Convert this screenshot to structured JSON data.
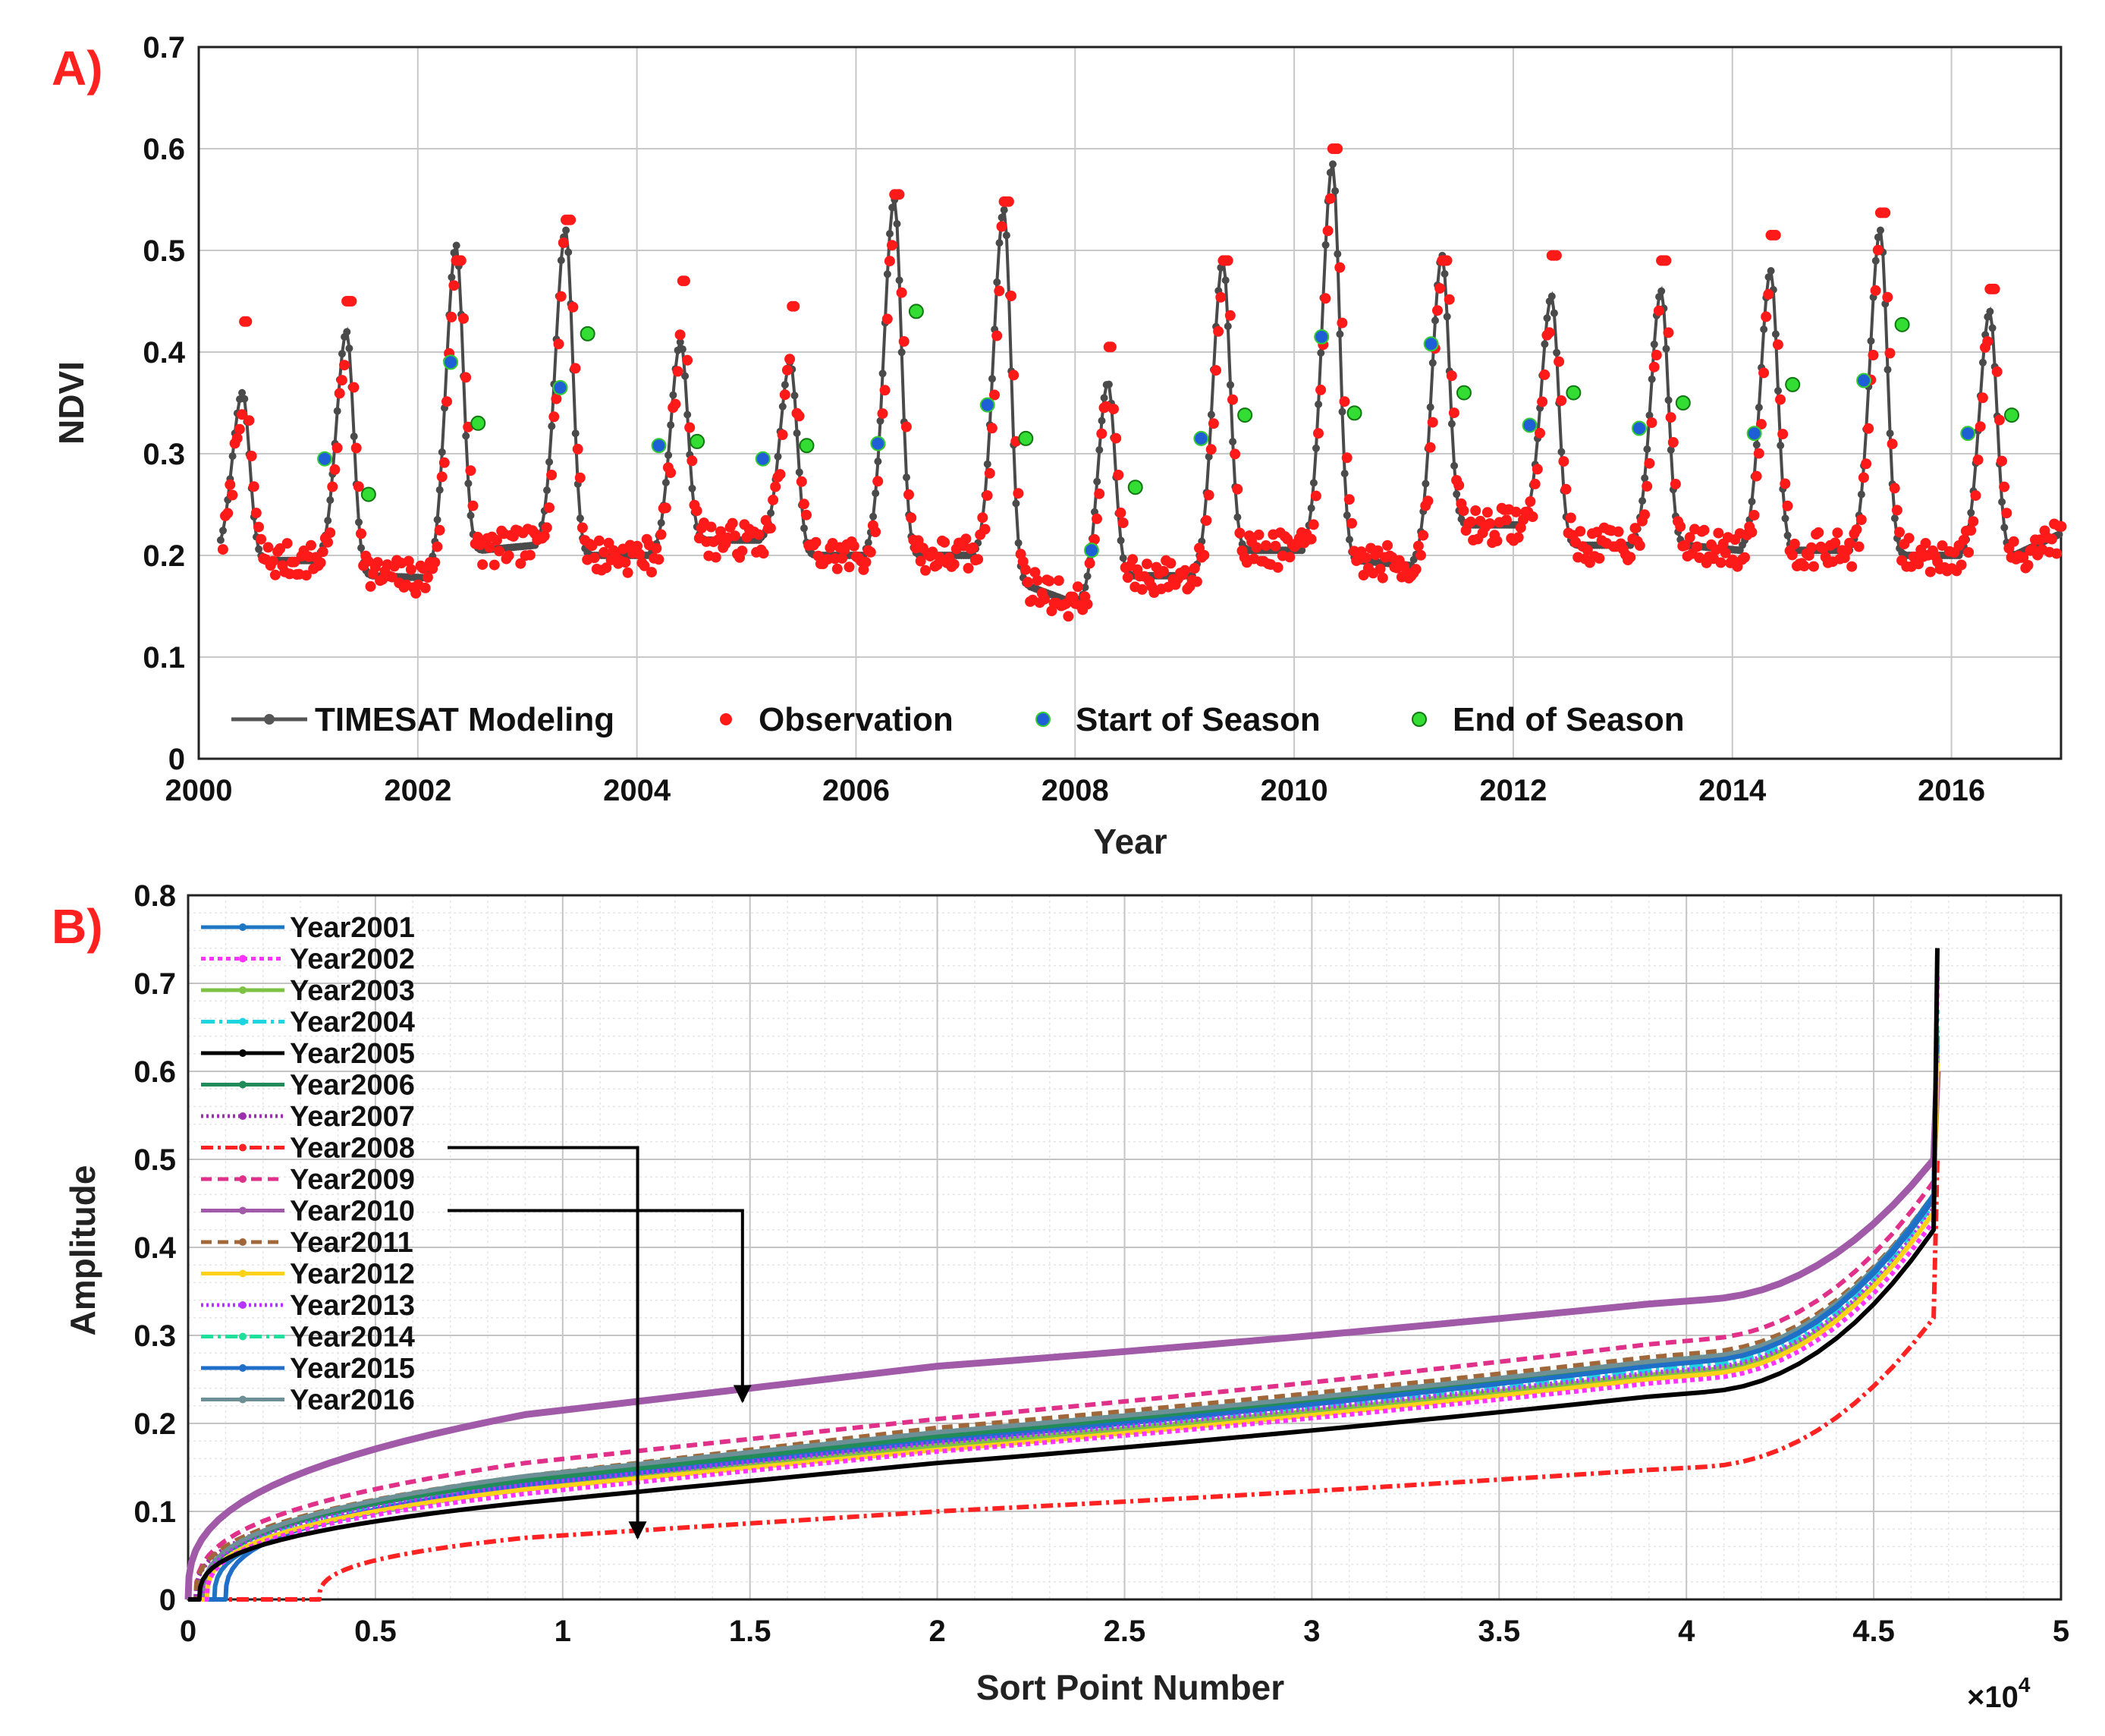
{
  "chart_data": [
    {
      "panel": "A)",
      "type": "line",
      "xlabel": "Year",
      "ylabel": "NDVI",
      "xlim": [
        2000,
        2017
      ],
      "ylim": [
        0,
        0.7
      ],
      "x_ticks": [
        "2000",
        "2002",
        "2004",
        "2006",
        "2008",
        "2010",
        "2012",
        "2014",
        "2016"
      ],
      "y_ticks": [
        "0",
        "0.1",
        "0.2",
        "0.3",
        "0.4",
        "0.5",
        "0.6",
        "0.7"
      ],
      "grid": true,
      "legend_position": "bottom-left",
      "series": [
        {
          "name": "TIMESAT Modeling",
          "style": "line-dot",
          "color": "#555555"
        },
        {
          "name": "Observation",
          "style": "marker",
          "color": "#ff1a1a"
        },
        {
          "name": "Start of Season",
          "style": "marker",
          "color": "#1f5fd6"
        },
        {
          "name": "End of Season",
          "style": "marker",
          "color": "#33dd33"
        }
      ],
      "seasons": [
        {
          "peak_x": 2000.4,
          "peak": 0.36,
          "base_before": 0.2,
          "base_after": 0.195,
          "obs_peak": 0.43
        },
        {
          "peak_x": 2001.35,
          "peak": 0.42,
          "base_before": 0.195,
          "base_after": 0.18,
          "obs_peak": 0.45
        },
        {
          "peak_x": 2002.35,
          "peak": 0.505,
          "base_before": 0.178,
          "base_after": 0.205,
          "obs_peak": 0.49
        },
        {
          "peak_x": 2003.35,
          "peak": 0.52,
          "base_before": 0.21,
          "base_after": 0.2,
          "obs_peak": 0.53
        },
        {
          "peak_x": 2004.4,
          "peak": 0.41,
          "base_before": 0.2,
          "base_after": 0.215,
          "obs_peak": 0.47
        },
        {
          "peak_x": 2005.4,
          "peak": 0.39,
          "base_before": 0.215,
          "base_after": 0.2,
          "obs_peak": 0.445
        },
        {
          "peak_x": 2006.35,
          "peak": 0.55,
          "base_before": 0.2,
          "base_after": 0.2,
          "obs_peak": 0.555
        },
        {
          "peak_x": 2007.35,
          "peak": 0.54,
          "base_before": 0.2,
          "base_after": 0.17,
          "obs_peak": 0.548
        },
        {
          "peak_x": 2008.3,
          "peak": 0.37,
          "base_before": 0.152,
          "base_after": 0.18,
          "obs_peak": 0.405
        },
        {
          "peak_x": 2009.35,
          "peak": 0.49,
          "base_before": 0.18,
          "base_after": 0.205,
          "obs_peak": 0.49
        },
        {
          "peak_x": 2010.35,
          "peak": 0.585,
          "base_before": 0.205,
          "base_after": 0.195,
          "obs_peak": 0.6
        },
        {
          "peak_x": 2011.35,
          "peak": 0.495,
          "base_before": 0.19,
          "base_after": 0.23,
          "obs_peak": 0.49
        },
        {
          "peak_x": 2012.35,
          "peak": 0.455,
          "base_before": 0.23,
          "base_after": 0.21,
          "obs_peak": 0.495
        },
        {
          "peak_x": 2013.35,
          "peak": 0.46,
          "base_before": 0.21,
          "base_after": 0.21,
          "obs_peak": 0.49
        },
        {
          "peak_x": 2014.35,
          "peak": 0.48,
          "base_before": 0.205,
          "base_after": 0.205,
          "obs_peak": 0.515
        },
        {
          "peak_x": 2015.35,
          "peak": 0.52,
          "base_before": 0.205,
          "base_after": 0.2,
          "obs_peak": 0.537
        },
        {
          "peak_x": 2016.35,
          "peak": 0.44,
          "base_before": 0.2,
          "base_after": 0.2,
          "obs_peak": 0.462
        }
      ],
      "start_of_season": [
        [
          2001.15,
          0.295
        ],
        [
          2002.3,
          0.39
        ],
        [
          2003.3,
          0.365
        ],
        [
          2004.2,
          0.308
        ],
        [
          2005.15,
          0.295
        ],
        [
          2006.2,
          0.31
        ],
        [
          2007.2,
          0.348
        ],
        [
          2008.15,
          0.205
        ],
        [
          2009.15,
          0.315
        ],
        [
          2010.25,
          0.415
        ],
        [
          2011.25,
          0.408
        ],
        [
          2012.15,
          0.328
        ],
        [
          2013.15,
          0.325
        ],
        [
          2014.2,
          0.32
        ],
        [
          2015.2,
          0.372
        ],
        [
          2016.15,
          0.32
        ]
      ],
      "end_of_season": [
        [
          2001.55,
          0.26
        ],
        [
          2002.55,
          0.33
        ],
        [
          2003.55,
          0.418
        ],
        [
          2004.55,
          0.312
        ],
        [
          2005.55,
          0.308
        ],
        [
          2006.55,
          0.44
        ],
        [
          2007.55,
          0.315
        ],
        [
          2008.55,
          0.267
        ],
        [
          2009.55,
          0.338
        ],
        [
          2010.55,
          0.34
        ],
        [
          2011.55,
          0.36
        ],
        [
          2012.55,
          0.36
        ],
        [
          2013.55,
          0.35
        ],
        [
          2014.55,
          0.368
        ],
        [
          2015.55,
          0.427
        ],
        [
          2016.55,
          0.338
        ]
      ]
    },
    {
      "panel": "B)",
      "type": "line",
      "xlabel": "Sort Point Number",
      "ylabel": "Amplitude",
      "x_multiplier": "×10",
      "x_multiplier_exp": "4",
      "xlim": [
        0,
        5
      ],
      "ylim": [
        0,
        0.8
      ],
      "x_ticks": [
        "0",
        "0.5",
        "1",
        "1.5",
        "2",
        "2.5",
        "3",
        "3.5",
        "4",
        "4.5",
        "5"
      ],
      "y_ticks": [
        "0",
        "0.1",
        "0.2",
        "0.3",
        "0.4",
        "0.5",
        "0.6",
        "0.7",
        "0.8"
      ],
      "grid": true,
      "legend_position": "top-left",
      "x_end": 4.67,
      "series": [
        {
          "name": "Year2001",
          "color": "#1f77c4",
          "dash": "",
          "start": 0.07,
          "y1": 0.125,
          "y2": 0.18,
          "y3": 0.27,
          "y4": 0.46,
          "ymax": 0.62
        },
        {
          "name": "Year2002",
          "color": "#ff33ff",
          "dash": "6 5",
          "start": 0.05,
          "y1": 0.12,
          "y2": 0.168,
          "y3": 0.25,
          "y4": 0.43,
          "ymax": 0.71
        },
        {
          "name": "Year2003",
          "color": "#7dc242",
          "dash": "",
          "start": 0.05,
          "y1": 0.125,
          "y2": 0.175,
          "y3": 0.26,
          "y4": 0.44,
          "ymax": 0.62
        },
        {
          "name": "Year2004",
          "color": "#1ed6e0",
          "dash": "18 6 4 6",
          "start": 0.04,
          "y1": 0.13,
          "y2": 0.18,
          "y3": 0.265,
          "y4": 0.45,
          "ymax": 0.63
        },
        {
          "name": "Year2005",
          "color": "#000000",
          "dash": "",
          "start": 0.03,
          "y1": 0.11,
          "y2": 0.155,
          "y3": 0.235,
          "y4": 0.42,
          "ymax": 0.74
        },
        {
          "name": "Year2006",
          "color": "#228b5a",
          "dash": "",
          "start": 0.04,
          "y1": 0.135,
          "y2": 0.185,
          "y3": 0.27,
          "y4": 0.455,
          "ymax": 0.64
        },
        {
          "name": "Year2007",
          "color": "#9b2fae",
          "dash": "3 4",
          "start": 0.02,
          "y1": 0.135,
          "y2": 0.19,
          "y3": 0.275,
          "y4": 0.46,
          "ymax": 0.65
        },
        {
          "name": "Year2008",
          "color": "#ff2222",
          "dash": "16 6 4 6",
          "start": 0.35,
          "y1": 0.07,
          "y2": 0.1,
          "y3": 0.15,
          "y4": 0.32,
          "ymax": 0.5
        },
        {
          "name": "Year2009",
          "color": "#e0308a",
          "dash": "14 8",
          "start": 0.02,
          "y1": 0.155,
          "y2": 0.205,
          "y3": 0.295,
          "y4": 0.475,
          "ymax": 0.6
        },
        {
          "name": "Year2010",
          "color": "#a05aa8",
          "dash": "",
          "start": 0.0,
          "y1": 0.21,
          "y2": 0.265,
          "y3": 0.34,
          "y4": 0.5,
          "ymax": 0.6
        },
        {
          "name": "Year2011",
          "color": "#a0673a",
          "dash": "14 8",
          "start": 0.02,
          "y1": 0.14,
          "y2": 0.195,
          "y3": 0.28,
          "y4": 0.46,
          "ymax": 0.62
        },
        {
          "name": "Year2012",
          "color": "#ffd21a",
          "dash": "",
          "start": 0.05,
          "y1": 0.125,
          "y2": 0.17,
          "y3": 0.255,
          "y4": 0.44,
          "ymax": 0.61
        },
        {
          "name": "Year2013",
          "color": "#b534ff",
          "dash": "3 4",
          "start": 0.04,
          "y1": 0.13,
          "y2": 0.178,
          "y3": 0.262,
          "y4": 0.445,
          "ymax": 0.62
        },
        {
          "name": "Year2014",
          "color": "#1ee09a",
          "dash": "16 6 4 6",
          "start": 0.04,
          "y1": 0.14,
          "y2": 0.19,
          "y3": 0.275,
          "y4": 0.46,
          "ymax": 0.67
        },
        {
          "name": "Year2015",
          "color": "#1f6fc8",
          "dash": "",
          "start": 0.1,
          "y1": 0.13,
          "y2": 0.18,
          "y3": 0.27,
          "y4": 0.455,
          "ymax": 0.63
        },
        {
          "name": "Year2016",
          "color": "#6d8f96",
          "dash": "",
          "start": 0.04,
          "y1": 0.14,
          "y2": 0.19,
          "y3": 0.275,
          "y4": 0.46,
          "ymax": 0.62
        }
      ],
      "annotations": [
        {
          "from_series": "Year2008",
          "target": [
            1.2,
            0.07
          ]
        },
        {
          "from_series": "Year2010",
          "target": [
            1.48,
            0.225
          ]
        }
      ]
    }
  ]
}
